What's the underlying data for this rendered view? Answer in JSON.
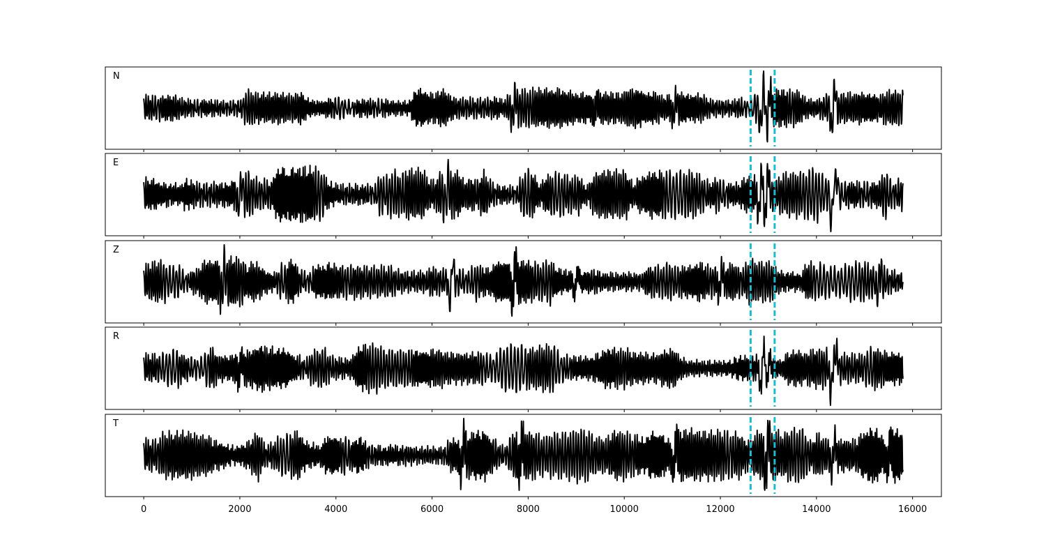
{
  "chart_data": {
    "type": "line",
    "layout": "5 stacked panels sharing x-axis",
    "title": "",
    "xlabel": "",
    "ylabel": "",
    "xlim": [
      -800,
      16600
    ],
    "x_ticks": [
      0,
      2000,
      4000,
      6000,
      8000,
      10000,
      12000,
      14000,
      16000
    ],
    "x_tick_labels": [
      "0",
      "2000",
      "4000",
      "6000",
      "8000",
      "10000",
      "12000",
      "14000",
      "16000"
    ],
    "y_axis_ticks": "hidden",
    "grid": false,
    "legend": "none",
    "sample_count": 15800,
    "line_color": "#000000",
    "marker_color": "#17becf",
    "markers": [
      {
        "x": 12630,
        "style": "dashed"
      },
      {
        "x": 13130,
        "style": "dashed"
      }
    ],
    "panels": [
      {
        "label": "N",
        "seed": 11,
        "events": [
          [
            12870,
            0.9
          ],
          [
            13000,
            0.8
          ],
          [
            14350,
            1.0
          ],
          [
            7700,
            0.5
          ],
          [
            11050,
            0.45
          ],
          [
            9400,
            0.4
          ]
        ]
      },
      {
        "label": "E",
        "seed": 23,
        "events": [
          [
            12830,
            0.7
          ],
          [
            12960,
            0.85
          ],
          [
            14340,
            1.0
          ],
          [
            14400,
            0.6
          ],
          [
            2000,
            0.45
          ],
          [
            6300,
            0.35
          ]
        ]
      },
      {
        "label": "Z",
        "seed": 37,
        "events": [
          [
            6400,
            0.85
          ],
          [
            7700,
            0.8
          ],
          [
            1650,
            0.55
          ],
          [
            9000,
            0.5
          ],
          [
            12000,
            0.45
          ],
          [
            15300,
            0.45
          ]
        ]
      },
      {
        "label": "R",
        "seed": 51,
        "events": [
          [
            12870,
            0.85
          ],
          [
            14330,
            1.0
          ],
          [
            14390,
            0.7
          ],
          [
            2000,
            0.4
          ],
          [
            13000,
            0.45
          ]
        ]
      },
      {
        "label": "T",
        "seed": 67,
        "events": [
          [
            6630,
            0.6
          ],
          [
            7840,
            0.55
          ],
          [
            11050,
            0.6
          ],
          [
            12970,
            0.8
          ],
          [
            14350,
            0.55
          ],
          [
            15500,
            0.5
          ]
        ]
      }
    ]
  }
}
